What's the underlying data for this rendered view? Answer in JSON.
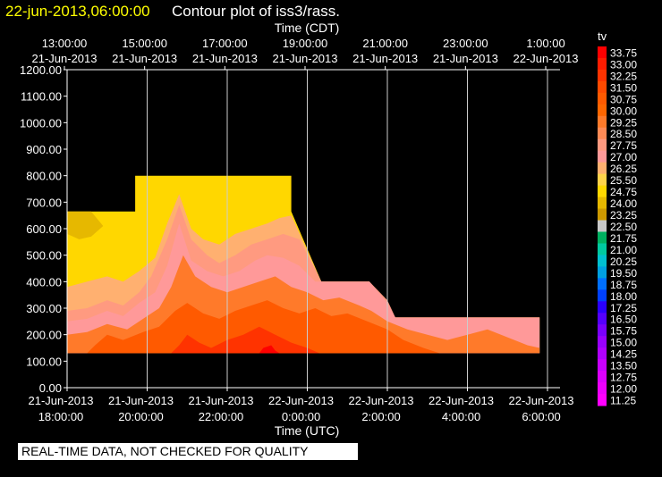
{
  "header": {
    "timestamp": "22-jun-2013,06:00:00",
    "title": "Contour plot of iss3/rass."
  },
  "warning": "REAL-TIME DATA, NOT CHECKED FOR QUALITY",
  "colors": {
    "background": "#000000",
    "timestamp_text": "#ffff00",
    "axis": "#ffffff"
  },
  "chart_data": {
    "type": "heatmap",
    "title": "Contour plot of iss3/rass.",
    "xlabel": "Time (UTC)",
    "x2label": "Time (CDT)",
    "ylabel": "",
    "xlim_hours_utc": [
      18.0,
      30.0
    ],
    "ylim": [
      0,
      1200
    ],
    "grid": "vertical lines at x ticks",
    "y_ticks": [
      "0.00",
      "100.00",
      "200.00",
      "300.00",
      "400.00",
      "500.00",
      "600.00",
      "700.00",
      "800.00",
      "900.00",
      "1000.00",
      "1100.00",
      "1200.00"
    ],
    "x_ticks_bottom": [
      {
        "date": "21-Jun-2013",
        "time": "18:00:00"
      },
      {
        "date": "21-Jun-2013",
        "time": "20:00:00"
      },
      {
        "date": "21-Jun-2013",
        "time": "22:00:00"
      },
      {
        "date": "22-Jun-2013",
        "time": "0:00:00"
      },
      {
        "date": "22-Jun-2013",
        "time": "2:00:00"
      },
      {
        "date": "22-Jun-2013",
        "time": "4:00:00"
      },
      {
        "date": "22-Jun-2013",
        "time": "6:00:00"
      }
    ],
    "x_ticks_top": [
      {
        "time": "13:00:00",
        "date": "21-Jun-2013"
      },
      {
        "time": "15:00:00",
        "date": "21-Jun-2013"
      },
      {
        "time": "17:00:00",
        "date": "21-Jun-2013"
      },
      {
        "time": "19:00:00",
        "date": "21-Jun-2013"
      },
      {
        "time": "21:00:00",
        "date": "21-Jun-2013"
      },
      {
        "time": "23:00:00",
        "date": "21-Jun-2013"
      },
      {
        "time": "1:00:00",
        "date": "22-Jun-2013"
      }
    ],
    "colorbar": {
      "label": "tv",
      "levels": [
        "33.75",
        "33.00",
        "32.25",
        "31.50",
        "30.75",
        "30.00",
        "29.25",
        "28.50",
        "27.75",
        "27.00",
        "26.25",
        "25.50",
        "24.75",
        "24.00",
        "23.25",
        "22.50",
        "21.75",
        "21.00",
        "20.25",
        "19.50",
        "18.75",
        "18.00",
        "17.25",
        "16.50",
        "15.75",
        "15.00",
        "14.25",
        "13.50",
        "12.75",
        "12.00",
        "11.25"
      ],
      "colors": [
        "#ff0000",
        "#ff1c00",
        "#ff3300",
        "#ff4a00",
        "#ff5a00",
        "#ff6600",
        "#ff7a2a",
        "#ff8a55",
        "#ff9a80",
        "#ff9999",
        "#ffb070",
        "#ffd24a",
        "#ffd700",
        "#e6b800",
        "#cc9900",
        "#c8c8c8",
        "#00b060",
        "#00c8a0",
        "#00c0d0",
        "#00a0e0",
        "#0070ff",
        "#0040ff",
        "#2a00ff",
        "#5500ff",
        "#7a00ff",
        "#9900ff",
        "#b000ff",
        "#c800ff",
        "#dd00ff",
        "#ee00ff",
        "#ff00ff"
      ]
    },
    "regions": [
      {
        "name": "extent-yellow",
        "color": "#ffd700",
        "points": [
          [
            18.0,
            130
          ],
          [
            18.0,
            665
          ],
          [
            19.7,
            665
          ],
          [
            19.7,
            800
          ],
          [
            21.2,
            800
          ],
          [
            22.8,
            800
          ],
          [
            23.6,
            800
          ],
          [
            23.6,
            665
          ],
          [
            24.35,
            400
          ],
          [
            25.55,
            400
          ],
          [
            26.2,
            265
          ],
          [
            29.8,
            265
          ],
          [
            29.8,
            130
          ]
        ]
      },
      {
        "name": "band-dark-yellow",
        "color": "#e6b800",
        "points": [
          [
            18.0,
            580
          ],
          [
            18.0,
            665
          ],
          [
            18.6,
            665
          ],
          [
            18.9,
            610
          ],
          [
            18.6,
            570
          ],
          [
            18.3,
            560
          ]
        ]
      },
      {
        "name": "band-light-orange",
        "color": "#ffb070",
        "points": [
          [
            18.0,
            130
          ],
          [
            18.0,
            380
          ],
          [
            18.5,
            400
          ],
          [
            19.0,
            420
          ],
          [
            19.4,
            400
          ],
          [
            19.8,
            440
          ],
          [
            20.2,
            490
          ],
          [
            20.5,
            620
          ],
          [
            20.8,
            730
          ],
          [
            21.1,
            600
          ],
          [
            21.4,
            560
          ],
          [
            21.8,
            540
          ],
          [
            22.2,
            580
          ],
          [
            22.6,
            600
          ],
          [
            23.0,
            620
          ],
          [
            23.3,
            640
          ],
          [
            23.6,
            650
          ],
          [
            24.35,
            400
          ],
          [
            25.55,
            400
          ],
          [
            26.2,
            265
          ],
          [
            29.8,
            265
          ],
          [
            29.8,
            130
          ]
        ]
      },
      {
        "name": "band-salmon",
        "color": "#ff9a80",
        "points": [
          [
            18.0,
            130
          ],
          [
            18.0,
            290
          ],
          [
            18.5,
            300
          ],
          [
            19.0,
            330
          ],
          [
            19.4,
            310
          ],
          [
            19.8,
            360
          ],
          [
            20.1,
            420
          ],
          [
            20.5,
            560
          ],
          [
            20.8,
            690
          ],
          [
            21.1,
            560
          ],
          [
            21.5,
            500
          ],
          [
            21.8,
            470
          ],
          [
            22.2,
            500
          ],
          [
            22.6,
            540
          ],
          [
            23.0,
            560
          ],
          [
            23.4,
            580
          ],
          [
            23.8,
            560
          ],
          [
            24.35,
            400
          ],
          [
            25.55,
            400
          ],
          [
            26.0,
            330
          ],
          [
            26.2,
            265
          ],
          [
            29.8,
            265
          ],
          [
            29.8,
            130
          ]
        ]
      },
      {
        "name": "band-pink",
        "color": "#ff9999",
        "points": [
          [
            18.0,
            130
          ],
          [
            18.0,
            250
          ],
          [
            18.5,
            260
          ],
          [
            19.0,
            290
          ],
          [
            19.4,
            270
          ],
          [
            19.8,
            320
          ],
          [
            20.2,
            360
          ],
          [
            20.5,
            460
          ],
          [
            20.8,
            620
          ],
          [
            21.1,
            480
          ],
          [
            21.5,
            440
          ],
          [
            21.9,
            420
          ],
          [
            22.3,
            440
          ],
          [
            22.7,
            480
          ],
          [
            23.0,
            500
          ],
          [
            23.4,
            490
          ],
          [
            23.8,
            460
          ],
          [
            24.2,
            400
          ],
          [
            25.55,
            400
          ],
          [
            26.0,
            320
          ],
          [
            26.2,
            265
          ],
          [
            29.8,
            265
          ],
          [
            29.8,
            130
          ]
        ]
      },
      {
        "name": "band-orange",
        "color": "#ff7a2a",
        "points": [
          [
            18.0,
            130
          ],
          [
            18.0,
            200
          ],
          [
            18.5,
            210
          ],
          [
            19.0,
            240
          ],
          [
            19.5,
            220
          ],
          [
            19.9,
            260
          ],
          [
            20.3,
            300
          ],
          [
            20.6,
            380
          ],
          [
            20.9,
            500
          ],
          [
            21.2,
            420
          ],
          [
            21.6,
            380
          ],
          [
            22.0,
            360
          ],
          [
            22.4,
            380
          ],
          [
            22.8,
            400
          ],
          [
            23.2,
            420
          ],
          [
            23.6,
            380
          ],
          [
            24.0,
            360
          ],
          [
            24.4,
            330
          ],
          [
            24.8,
            340
          ],
          [
            25.3,
            310
          ],
          [
            25.6,
            290
          ],
          [
            26.0,
            250
          ],
          [
            26.5,
            220
          ],
          [
            27.0,
            200
          ],
          [
            27.5,
            180
          ],
          [
            28.0,
            200
          ],
          [
            28.5,
            220
          ],
          [
            29.0,
            190
          ],
          [
            29.5,
            160
          ],
          [
            29.8,
            150
          ],
          [
            29.8,
            130
          ]
        ]
      },
      {
        "name": "band-red-orange",
        "color": "#ff5a00",
        "points": [
          [
            18.5,
            130
          ],
          [
            18.7,
            160
          ],
          [
            19.0,
            200
          ],
          [
            19.4,
            180
          ],
          [
            19.9,
            210
          ],
          [
            20.3,
            230
          ],
          [
            20.7,
            290
          ],
          [
            21.0,
            320
          ],
          [
            21.4,
            280
          ],
          [
            21.8,
            260
          ],
          [
            22.2,
            290
          ],
          [
            22.6,
            310
          ],
          [
            23.0,
            330
          ],
          [
            23.4,
            300
          ],
          [
            23.8,
            280
          ],
          [
            24.2,
            300
          ],
          [
            24.6,
            270
          ],
          [
            25.0,
            280
          ],
          [
            25.5,
            250
          ],
          [
            26.0,
            220
          ],
          [
            26.4,
            180
          ],
          [
            26.9,
            150
          ],
          [
            27.3,
            130
          ]
        ]
      },
      {
        "name": "band-red",
        "color": "#ff3300",
        "points": [
          [
            20.6,
            130
          ],
          [
            20.8,
            160
          ],
          [
            21.0,
            200
          ],
          [
            21.3,
            170
          ],
          [
            21.6,
            150
          ],
          [
            22.0,
            180
          ],
          [
            22.4,
            200
          ],
          [
            22.8,
            230
          ],
          [
            23.2,
            200
          ],
          [
            23.6,
            170
          ],
          [
            24.0,
            150
          ],
          [
            24.3,
            130
          ]
        ]
      },
      {
        "name": "cell-hot",
        "color": "#ff0000",
        "points": [
          [
            22.8,
            130
          ],
          [
            22.9,
            150
          ],
          [
            23.1,
            160
          ],
          [
            23.2,
            140
          ],
          [
            23.3,
            130
          ]
        ]
      }
    ]
  }
}
